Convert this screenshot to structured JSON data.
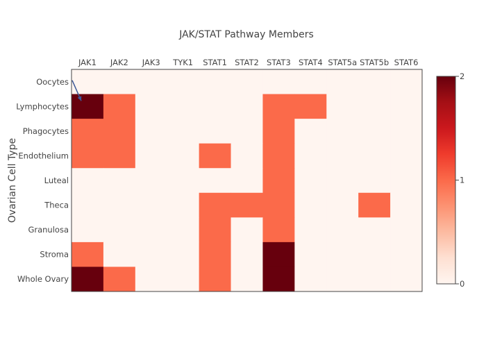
{
  "chart_data": {
    "type": "heatmap",
    "title": "JAK/STAT Pathway Members",
    "xlabel": "",
    "ylabel": "Ovarian Cell Type",
    "x": [
      "JAK1",
      "JAK2",
      "JAK3",
      "TYK1",
      "STAT1",
      "STAT2",
      "STAT3",
      "STAT4",
      "STAT5a",
      "STAT5b",
      "STAT6"
    ],
    "y": [
      "Oocytes",
      "Lymphocytes",
      "Phagocytes",
      "Endothelium",
      "Luteal",
      "Theca",
      "Granulosa",
      "Stroma",
      "Whole Ovary"
    ],
    "z": [
      [
        0,
        0,
        0,
        0,
        0,
        0,
        0,
        0,
        0,
        0,
        0
      ],
      [
        2,
        1,
        0,
        0,
        0,
        0,
        1,
        1,
        0,
        0,
        0
      ],
      [
        1,
        1,
        0,
        0,
        0,
        0,
        1,
        0,
        0,
        0,
        0
      ],
      [
        1,
        1,
        0,
        0,
        1,
        0,
        1,
        0,
        0,
        0,
        0
      ],
      [
        0,
        0,
        0,
        0,
        0,
        0,
        1,
        0,
        0,
        0,
        0
      ],
      [
        0,
        0,
        0,
        0,
        1,
        1,
        1,
        0,
        0,
        1,
        0
      ],
      [
        0,
        0,
        0,
        0,
        1,
        0,
        1,
        0,
        0,
        0,
        0
      ],
      [
        1,
        0,
        0,
        0,
        1,
        0,
        2,
        0,
        0,
        0,
        0
      ],
      [
        2,
        1,
        0,
        0,
        1,
        0,
        2,
        0,
        0,
        0,
        0
      ]
    ],
    "zlim": [
      0,
      2
    ],
    "colorbar": {
      "ticks": [
        0,
        1,
        2
      ],
      "tick_labels": [
        "0",
        "1",
        "2"
      ]
    },
    "colorscale": [
      [
        0,
        "#fff5f0"
      ],
      [
        0.125,
        "#fee0d2"
      ],
      [
        0.25,
        "#fcbba1"
      ],
      [
        0.375,
        "#fc9272"
      ],
      [
        0.5,
        "#fb6a4a"
      ],
      [
        0.625,
        "#ef3b2c"
      ],
      [
        0.75,
        "#cb181d"
      ],
      [
        0.875,
        "#a50f15"
      ],
      [
        1,
        "#67000d"
      ]
    ],
    "annotation": {
      "type": "arrow",
      "from_row": "Oocytes",
      "to_row": "Lymphocytes",
      "color": "#3d5a99"
    },
    "grid": false,
    "legend": "colorbar-right"
  }
}
